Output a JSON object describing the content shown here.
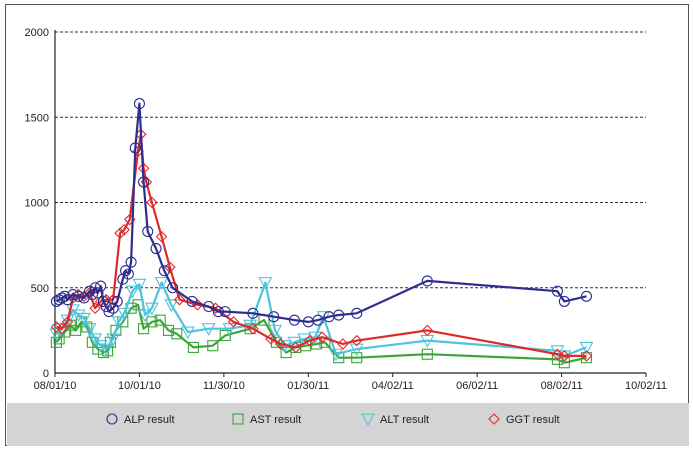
{
  "chart_data": {
    "type": "line",
    "xlabel": "",
    "ylabel": "",
    "x_ticks": [
      "08/01/10",
      "10/01/10",
      "11/30/10",
      "01/30/11",
      "04/02/11",
      "06/02/11",
      "08/02/11",
      "10/02/11"
    ],
    "x_range": [
      "2010-08-01",
      "2011-10-02"
    ],
    "y_ticks": [
      0,
      500,
      1000,
      1500,
      2000
    ],
    "ylim": [
      0,
      2000
    ],
    "grid": "horizontal dashed",
    "legend_placement": "bottom",
    "series": [
      {
        "name": "ALP result",
        "color": "#2e2e8f",
        "marker": "circle",
        "points": [
          [
            "2010-08-02",
            420
          ],
          [
            "2010-08-04",
            430
          ],
          [
            "2010-08-06",
            440
          ],
          [
            "2010-08-08",
            450
          ],
          [
            "2010-08-10",
            430
          ],
          [
            "2010-08-14",
            460
          ],
          [
            "2010-08-18",
            450
          ],
          [
            "2010-08-22",
            440
          ],
          [
            "2010-08-26",
            480
          ],
          [
            "2010-08-28",
            460
          ],
          [
            "2010-08-30",
            500
          ],
          [
            "2010-09-01",
            470
          ],
          [
            "2010-09-03",
            510
          ],
          [
            "2010-09-05",
            420
          ],
          [
            "2010-09-07",
            390
          ],
          [
            "2010-09-09",
            360
          ],
          [
            "2010-09-12",
            380
          ],
          [
            "2010-09-15",
            420
          ],
          [
            "2010-09-19",
            550
          ],
          [
            "2010-09-21",
            600
          ],
          [
            "2010-09-23",
            580
          ],
          [
            "2010-09-25",
            650
          ],
          [
            "2010-09-28",
            1320
          ],
          [
            "2010-10-01",
            1580
          ],
          [
            "2010-10-04",
            1120
          ],
          [
            "2010-10-07",
            830
          ],
          [
            "2010-10-13",
            730
          ],
          [
            "2010-10-19",
            600
          ],
          [
            "2010-10-25",
            500
          ],
          [
            "2010-11-08",
            420
          ],
          [
            "2010-11-20",
            390
          ],
          [
            "2010-11-27",
            360
          ],
          [
            "2010-12-02",
            360
          ],
          [
            "2010-12-22",
            350
          ],
          [
            "2011-01-06",
            330
          ],
          [
            "2011-01-21",
            310
          ],
          [
            "2011-01-31",
            300
          ],
          [
            "2011-02-07",
            310
          ],
          [
            "2011-02-15",
            330
          ],
          [
            "2011-02-22",
            340
          ],
          [
            "2011-03-07",
            350
          ],
          [
            "2011-04-27",
            540
          ],
          [
            "2011-07-30",
            480
          ],
          [
            "2011-08-04",
            420
          ],
          [
            "2011-08-20",
            450
          ]
        ]
      },
      {
        "name": "AST result",
        "color": "#3aa638",
        "marker": "square",
        "points": [
          [
            "2010-08-02",
            180
          ],
          [
            "2010-08-04",
            200
          ],
          [
            "2010-08-08",
            240
          ],
          [
            "2010-08-12",
            280
          ],
          [
            "2010-08-16",
            250
          ],
          [
            "2010-08-20",
            300
          ],
          [
            "2010-08-24",
            270
          ],
          [
            "2010-08-28",
            180
          ],
          [
            "2010-09-01",
            140
          ],
          [
            "2010-09-05",
            120
          ],
          [
            "2010-09-08",
            130
          ],
          [
            "2010-09-10",
            180
          ],
          [
            "2010-09-14",
            250
          ],
          [
            "2010-09-19",
            300
          ],
          [
            "2010-09-25",
            380
          ],
          [
            "2010-09-30",
            400
          ],
          [
            "2010-10-04",
            260
          ],
          [
            "2010-10-10",
            300
          ],
          [
            "2010-10-16",
            310
          ],
          [
            "2010-10-22",
            250
          ],
          [
            "2010-10-28",
            230
          ],
          [
            "2010-11-09",
            150
          ],
          [
            "2010-11-23",
            160
          ],
          [
            "2010-12-02",
            220
          ],
          [
            "2010-12-20",
            260
          ],
          [
            "2010-12-30",
            310
          ],
          [
            "2011-01-08",
            180
          ],
          [
            "2011-01-15",
            120
          ],
          [
            "2011-01-22",
            150
          ],
          [
            "2011-01-29",
            160
          ],
          [
            "2011-02-06",
            170
          ],
          [
            "2011-02-12",
            180
          ],
          [
            "2011-02-22",
            90
          ],
          [
            "2011-03-07",
            90
          ],
          [
            "2011-04-27",
            110
          ],
          [
            "2011-07-30",
            80
          ],
          [
            "2011-08-04",
            60
          ],
          [
            "2011-08-20",
            90
          ]
        ]
      },
      {
        "name": "ALT result",
        "color": "#4ec3de",
        "marker": "triangle",
        "points": [
          [
            "2010-08-02",
            230
          ],
          [
            "2010-08-06",
            260
          ],
          [
            "2010-08-10",
            310
          ],
          [
            "2010-08-14",
            370
          ],
          [
            "2010-08-18",
            340
          ],
          [
            "2010-08-22",
            320
          ],
          [
            "2010-08-26",
            260
          ],
          [
            "2010-08-30",
            200
          ],
          [
            "2010-09-03",
            160
          ],
          [
            "2010-09-07",
            140
          ],
          [
            "2010-09-12",
            200
          ],
          [
            "2010-09-16",
            300
          ],
          [
            "2010-09-20",
            350
          ],
          [
            "2010-09-26",
            480
          ],
          [
            "2010-10-01",
            520
          ],
          [
            "2010-10-05",
            340
          ],
          [
            "2010-10-10",
            380
          ],
          [
            "2010-10-17",
            530
          ],
          [
            "2010-10-24",
            400
          ],
          [
            "2010-11-05",
            240
          ],
          [
            "2010-11-20",
            260
          ],
          [
            "2010-12-05",
            260
          ],
          [
            "2010-12-20",
            280
          ],
          [
            "2010-12-31",
            530
          ],
          [
            "2011-01-07",
            250
          ],
          [
            "2011-01-14",
            160
          ],
          [
            "2011-01-21",
            180
          ],
          [
            "2011-01-28",
            200
          ],
          [
            "2011-02-05",
            210
          ],
          [
            "2011-02-11",
            330
          ],
          [
            "2011-02-20",
            110
          ],
          [
            "2011-03-07",
            140
          ],
          [
            "2011-04-27",
            190
          ],
          [
            "2011-07-30",
            130
          ],
          [
            "2011-08-04",
            100
          ],
          [
            "2011-08-20",
            150
          ]
        ]
      },
      {
        "name": "GGT result",
        "color": "#e02a2a",
        "marker": "diamond",
        "points": [
          [
            "2010-08-02",
            270
          ],
          [
            "2010-08-06",
            260
          ],
          [
            "2010-08-10",
            300
          ],
          [
            "2010-08-14",
            440
          ],
          [
            "2010-08-18",
            460
          ],
          [
            "2010-08-22",
            450
          ],
          [
            "2010-08-26",
            470
          ],
          [
            "2010-08-30",
            380
          ],
          [
            "2010-09-03",
            420
          ],
          [
            "2010-09-07",
            430
          ],
          [
            "2010-09-12",
            430
          ],
          [
            "2010-09-17",
            820
          ],
          [
            "2010-09-20",
            840
          ],
          [
            "2010-09-24",
            900
          ],
          [
            "2010-09-30",
            1300
          ],
          [
            "2010-10-02",
            1400
          ],
          [
            "2010-10-04",
            1200
          ],
          [
            "2010-10-06",
            1120
          ],
          [
            "2010-10-10",
            1000
          ],
          [
            "2010-10-17",
            800
          ],
          [
            "2010-10-23",
            620
          ],
          [
            "2010-10-30",
            430
          ],
          [
            "2010-11-12",
            400
          ],
          [
            "2010-11-25",
            380
          ],
          [
            "2010-12-08",
            300
          ],
          [
            "2010-12-22",
            260
          ],
          [
            "2011-01-04",
            200
          ],
          [
            "2011-01-11",
            170
          ],
          [
            "2011-01-22",
            150
          ],
          [
            "2011-02-01",
            190
          ],
          [
            "2011-02-10",
            210
          ],
          [
            "2011-02-25",
            170
          ],
          [
            "2011-03-07",
            190
          ],
          [
            "2011-04-27",
            250
          ],
          [
            "2011-07-30",
            110
          ],
          [
            "2011-08-04",
            100
          ],
          [
            "2011-08-20",
            100
          ]
        ]
      }
    ]
  }
}
